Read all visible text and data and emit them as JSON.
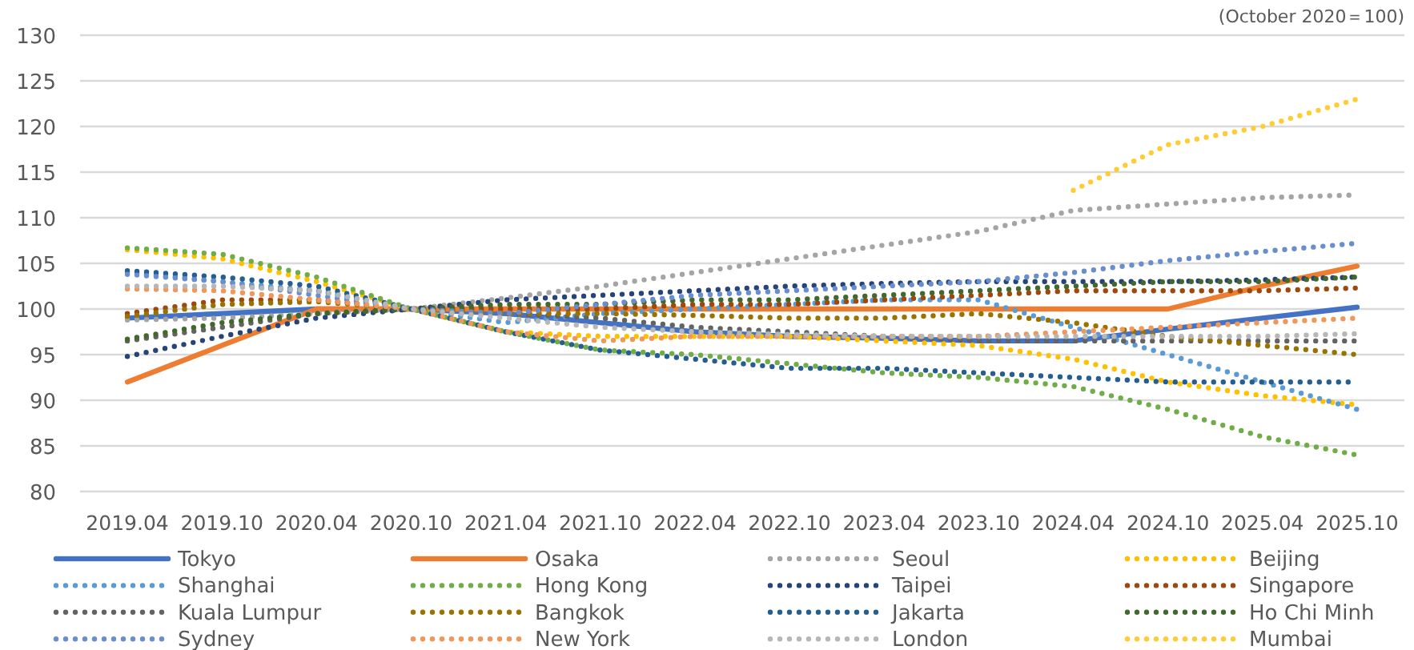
{
  "chart_data": {
    "type": "line",
    "annotations": [
      "(October 2020＝100)"
    ],
    "categories": [
      "2019.04",
      "2019.10",
      "2020.04",
      "2020.10",
      "2021.04",
      "2021.10",
      "2022.04",
      "2022.10",
      "2023.04",
      "2023.10",
      "2024.04",
      "2024.10",
      "2025.04",
      "2025.10"
    ],
    "ylim": [
      80,
      130
    ],
    "yticks": [
      80,
      85,
      90,
      95,
      100,
      105,
      110,
      115,
      120,
      125,
      130
    ],
    "grid": "y",
    "legend": "bottom",
    "marker": "none",
    "series": [
      {
        "name": "Tokyo",
        "color": "#4472c4",
        "line_style": "solid",
        "values": [
          99,
          99.5,
          100,
          100,
          99.5,
          98.5,
          97.5,
          97,
          96.8,
          96.5,
          96.5,
          97.8,
          99,
          100.2
        ]
      },
      {
        "name": "Osaka",
        "color": "#ed7d31",
        "line_style": "solid",
        "values": [
          92,
          96,
          100,
          100,
          100,
          100,
          100,
          100,
          100,
          100,
          100,
          100,
          102.5,
          104.7
        ]
      },
      {
        "name": "Seoul",
        "color": "#a5a5a5",
        "line_style": "dotted",
        "values": [
          98.8,
          99,
          99.5,
          100,
          101.2,
          102.5,
          104,
          105.5,
          107,
          108.5,
          110.8,
          111.5,
          112.2,
          112.5
        ]
      },
      {
        "name": "Beijing",
        "color": "#ffc000",
        "line_style": "dotted",
        "values": [
          106.5,
          105.5,
          103,
          100,
          97.5,
          97,
          97,
          97,
          96.5,
          96,
          94.5,
          92,
          90.5,
          89.5
        ]
      },
      {
        "name": "Shanghai",
        "color": "#5b9bd5",
        "line_style": "dotted",
        "values": [
          104,
          103,
          102,
          100,
          98.5,
          99.5,
          100,
          100.5,
          101,
          101,
          98,
          95,
          92,
          89
        ]
      },
      {
        "name": "Hong Kong",
        "color": "#70ad47",
        "line_style": "dotted",
        "values": [
          106.7,
          106,
          103.5,
          100,
          97.5,
          95.5,
          95,
          94,
          93,
          92.5,
          91.5,
          89,
          86,
          84
        ]
      },
      {
        "name": "Taipei",
        "color": "#264478",
        "line_style": "dotted",
        "values": [
          94.8,
          97,
          99,
          100,
          101,
          101.5,
          102,
          102.5,
          102.8,
          103,
          103,
          103,
          103.2,
          103.5
        ]
      },
      {
        "name": "Singapore",
        "color": "#9e480e",
        "line_style": "dotted",
        "values": [
          99.5,
          101,
          101,
          100,
          100,
          100,
          100.5,
          100.5,
          101,
          101.5,
          102,
          102,
          102,
          102.3
        ]
      },
      {
        "name": "Kuala Lumpur",
        "color": "#636363",
        "line_style": "dotted",
        "values": [
          96.5,
          98,
          99.5,
          100,
          99.5,
          99,
          98,
          97.5,
          97,
          96.5,
          96.5,
          96.5,
          96.5,
          96.5
        ]
      },
      {
        "name": "Bangkok",
        "color": "#997300",
        "line_style": "dotted",
        "values": [
          99.2,
          100.5,
          100.8,
          100,
          99.5,
          99.5,
          99.3,
          99,
          99,
          99.5,
          98.5,
          97,
          96,
          95
        ]
      },
      {
        "name": "Jakarta",
        "color": "#255e91",
        "line_style": "dotted",
        "values": [
          104.2,
          103.5,
          102.5,
          100,
          97.5,
          95.5,
          94.5,
          93.5,
          93.5,
          93,
          92.5,
          92,
          92,
          92
        ]
      },
      {
        "name": "Ho Chi Minh",
        "color": "#43682b",
        "line_style": "dotted",
        "values": [
          96.7,
          98.5,
          99.5,
          100,
          100.5,
          100.5,
          101,
          101,
          101.5,
          102,
          102.5,
          103,
          103,
          103.5
        ]
      },
      {
        "name": "Sydney",
        "color": "#698ed0",
        "line_style": "dotted",
        "values": [
          103.8,
          103,
          101.5,
          100,
          99.5,
          100.5,
          101.5,
          102,
          102.5,
          103,
          104,
          105.3,
          106.3,
          107.2
        ]
      },
      {
        "name": "New York",
        "color": "#f1975a",
        "line_style": "dotted",
        "values": [
          102.2,
          102,
          101,
          100,
          97.5,
          96.5,
          97,
          97,
          97,
          97,
          97.5,
          98,
          98.5,
          99
        ]
      },
      {
        "name": "London",
        "color": "#b7b7b7",
        "line_style": "dotted",
        "values": [
          102.5,
          102.5,
          102,
          100,
          99,
          98,
          97.5,
          97.2,
          97,
          97,
          97,
          97,
          97,
          97.3
        ]
      },
      {
        "name": "Mumbai",
        "color": "#ffcd33",
        "line_style": "dotted",
        "values": [
          null,
          null,
          null,
          null,
          null,
          null,
          null,
          null,
          null,
          null,
          113,
          118,
          120,
          123
        ]
      }
    ]
  }
}
